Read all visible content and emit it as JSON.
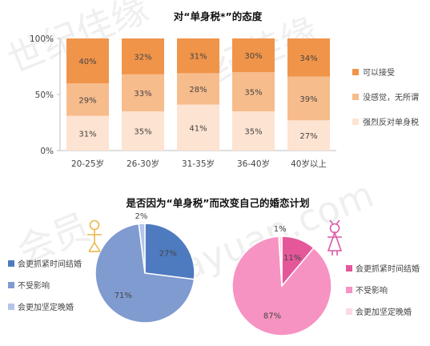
{
  "chart_data": [
    {
      "type": "bar",
      "stacked": true,
      "title": "对“单身税*”的态度",
      "categories": [
        "20-25岁",
        "26-30岁",
        "31-35岁",
        "36-40岁",
        "40岁以上"
      ],
      "series": [
        {
          "name": "强烈反对单身税",
          "color": "#fde3d1",
          "values": [
            31,
            35,
            41,
            35,
            27
          ]
        },
        {
          "name": "没感觉，无所谓",
          "color": "#f7bc8c",
          "values": [
            29,
            33,
            28,
            35,
            39
          ]
        },
        {
          "name": "可以接受",
          "color": "#f0944a",
          "values": [
            40,
            32,
            31,
            30,
            34
          ]
        }
      ],
      "ylim": [
        0,
        100
      ],
      "yticks": [
        "0%",
        "50%",
        "100%"
      ],
      "legend_position": "right",
      "grid": false
    },
    {
      "type": "pie",
      "title": "是否因为“单身税”而改变自己的婚恋计划",
      "gender_symbol": "male",
      "slices": [
        {
          "label": "会更抓紧时间结婚",
          "value": 27,
          "display": "27%",
          "color": "#4e7bbf"
        },
        {
          "label": "不受影响",
          "value": 71,
          "display": "71%",
          "color": "#7f9bd0"
        },
        {
          "label": "会更加坚定晚婚",
          "value": 2,
          "display": "2%",
          "color": "#b4c5ea"
        }
      ],
      "symbol_color": "#e9b84c"
    },
    {
      "type": "pie",
      "gender_symbol": "female",
      "slices": [
        {
          "label": "会更抓紧时间结婚",
          "value": 11,
          "display": "11%",
          "color": "#e4589a"
        },
        {
          "label": "不受影响",
          "value": 87,
          "display": "87%",
          "color": "#f693c2"
        },
        {
          "label": "会更加坚定晚婚",
          "value": 1,
          "display": "1%",
          "color": "#fbd9e8"
        }
      ],
      "symbol_color": "#dd5aa5"
    }
  ],
  "watermark": [
    "世纪佳缘",
    "jiayuan.com",
    "会员"
  ]
}
